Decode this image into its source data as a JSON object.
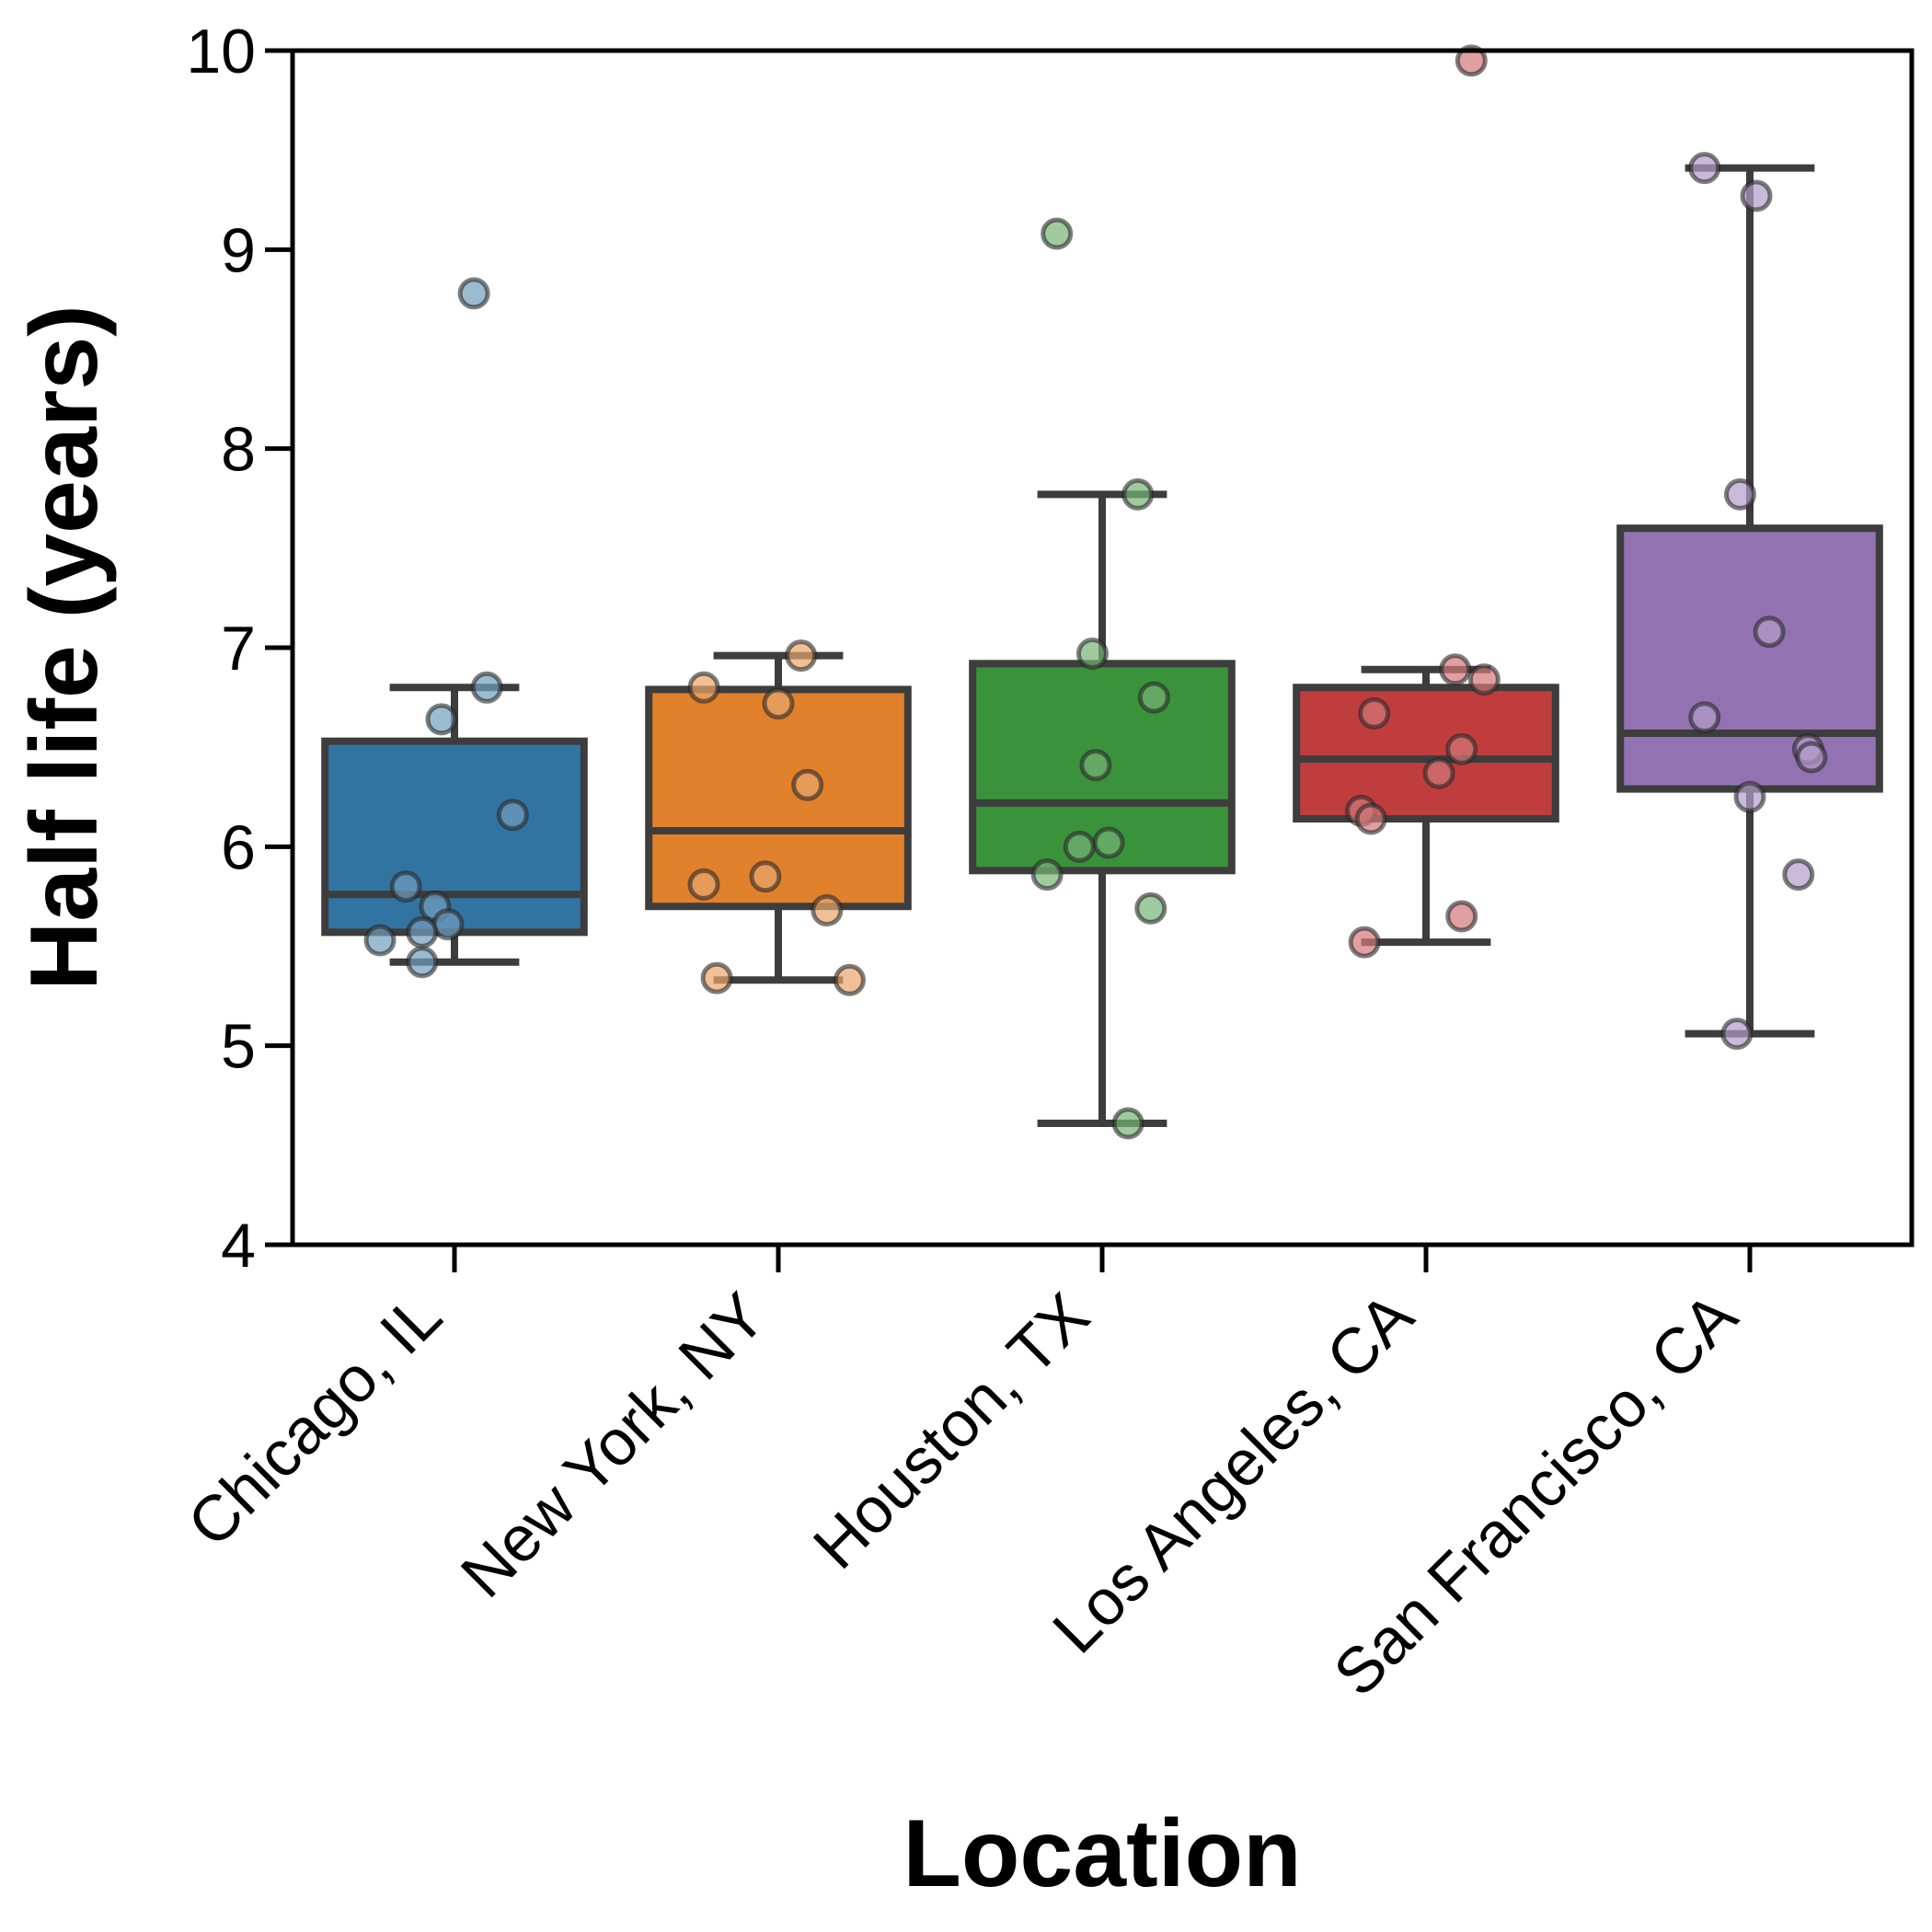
{
  "chart_data": {
    "type": "box",
    "xlabel": "Location",
    "ylabel": "Half life (years)",
    "ylim": [
      4,
      10
    ],
    "yticks": [
      4,
      5,
      6,
      7,
      8,
      9,
      10
    ],
    "categories": [
      "Chicago, IL",
      "New York, NY",
      "Houston, TX",
      "Los Angeles, CA",
      "San Francisco, CA"
    ],
    "colors": [
      "#3274a1",
      "#e1812c",
      "#3a923a",
      "#c03d3e",
      "#9372b2"
    ],
    "boxes": [
      {
        "q1": 5.57,
        "median": 5.76,
        "q3": 6.53,
        "whisker_low": 5.42,
        "whisker_high": 6.8
      },
      {
        "q1": 5.7,
        "median": 6.08,
        "q3": 6.79,
        "whisker_low": 5.33,
        "whisker_high": 6.96
      },
      {
        "q1": 5.88,
        "median": 6.22,
        "q3": 6.92,
        "whisker_low": 4.61,
        "whisker_high": 7.77
      },
      {
        "q1": 6.14,
        "median": 6.44,
        "q3": 6.8,
        "whisker_low": 5.52,
        "whisker_high": 6.89
      },
      {
        "q1": 6.29,
        "median": 6.57,
        "q3": 7.6,
        "whisker_low": 5.06,
        "whisker_high": 9.41
      }
    ],
    "points": [
      [
        {
          "dx": 0.06,
          "y": 8.78
        },
        {
          "dx": -0.04,
          "y": 6.64
        },
        {
          "dx": 0.1,
          "y": 6.8
        },
        {
          "dx": 0.18,
          "y": 6.16
        },
        {
          "dx": -0.15,
          "y": 5.8
        },
        {
          "dx": -0.06,
          "y": 5.7
        },
        {
          "dx": -0.02,
          "y": 5.61
        },
        {
          "dx": -0.1,
          "y": 5.57
        },
        {
          "dx": -0.23,
          "y": 5.53
        },
        {
          "dx": -0.1,
          "y": 5.42
        }
      ],
      [
        {
          "dx": 0.07,
          "y": 6.96
        },
        {
          "dx": -0.23,
          "y": 6.8
        },
        {
          "dx": 0.0,
          "y": 6.72
        },
        {
          "dx": 0.09,
          "y": 6.31
        },
        {
          "dx": -0.04,
          "y": 5.85
        },
        {
          "dx": -0.23,
          "y": 5.81
        },
        {
          "dx": 0.15,
          "y": 5.68
        },
        {
          "dx": -0.19,
          "y": 5.34
        },
        {
          "dx": 0.22,
          "y": 5.33
        }
      ],
      [
        {
          "dx": -0.14,
          "y": 9.08
        },
        {
          "dx": 0.11,
          "y": 7.77
        },
        {
          "dx": -0.03,
          "y": 6.97
        },
        {
          "dx": 0.16,
          "y": 6.75
        },
        {
          "dx": -0.02,
          "y": 6.41
        },
        {
          "dx": 0.02,
          "y": 6.02
        },
        {
          "dx": -0.07,
          "y": 6.0
        },
        {
          "dx": -0.17,
          "y": 5.86
        },
        {
          "dx": 0.15,
          "y": 5.69
        },
        {
          "dx": 0.08,
          "y": 4.61
        }
      ],
      [
        {
          "dx": 0.14,
          "y": 9.95
        },
        {
          "dx": 0.09,
          "y": 6.89
        },
        {
          "dx": 0.18,
          "y": 6.84
        },
        {
          "dx": -0.16,
          "y": 6.67
        },
        {
          "dx": 0.11,
          "y": 6.49
        },
        {
          "dx": 0.04,
          "y": 6.37
        },
        {
          "dx": -0.2,
          "y": 6.18
        },
        {
          "dx": -0.17,
          "y": 6.14
        },
        {
          "dx": 0.11,
          "y": 5.65
        },
        {
          "dx": -0.19,
          "y": 5.52
        }
      ],
      [
        {
          "dx": -0.14,
          "y": 9.41
        },
        {
          "dx": 0.02,
          "y": 9.27
        },
        {
          "dx": -0.03,
          "y": 7.77
        },
        {
          "dx": 0.06,
          "y": 7.08
        },
        {
          "dx": -0.14,
          "y": 6.65
        },
        {
          "dx": 0.18,
          "y": 6.49
        },
        {
          "dx": 0.19,
          "y": 6.45
        },
        {
          "dx": 0.0,
          "y": 6.25
        },
        {
          "dx": 0.15,
          "y": 5.86
        },
        {
          "dx": -0.04,
          "y": 5.06
        }
      ]
    ]
  }
}
